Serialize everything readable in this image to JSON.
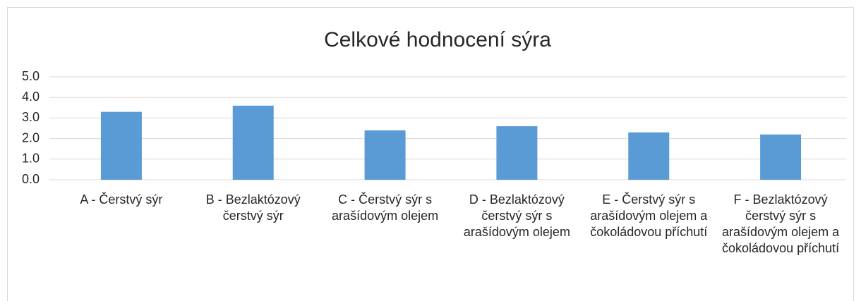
{
  "chart_data": {
    "type": "bar",
    "title": "Celkové hodnocení sýra",
    "categories": [
      "A - Čerstvý sýr",
      "B - Bezlaktózový čerstvý sýr",
      "C - Čerstvý sýr s arašídovým olejem",
      "D - Bezlaktózový čerstvý sýr s arašídovým olejem",
      "E - Čerstvý sýr s arašídovým olejem a čokoládovou příchutí",
      "F - Bezlaktózový čerstvý sýr s arašídovým olejem a čokoládovou příchutí"
    ],
    "values": [
      3.3,
      3.6,
      2.4,
      2.6,
      2.3,
      2.2
    ],
    "color": "#5b9bd5",
    "ylim": [
      0,
      5
    ],
    "yticks": [
      {
        "value": 0,
        "label": "0.0"
      },
      {
        "value": 1,
        "label": "1.0"
      },
      {
        "value": 2,
        "label": "2.0"
      },
      {
        "value": 3,
        "label": "3.0"
      },
      {
        "value": 4,
        "label": "4.0"
      },
      {
        "value": 5,
        "label": "5.0"
      }
    ],
    "grid": true
  }
}
